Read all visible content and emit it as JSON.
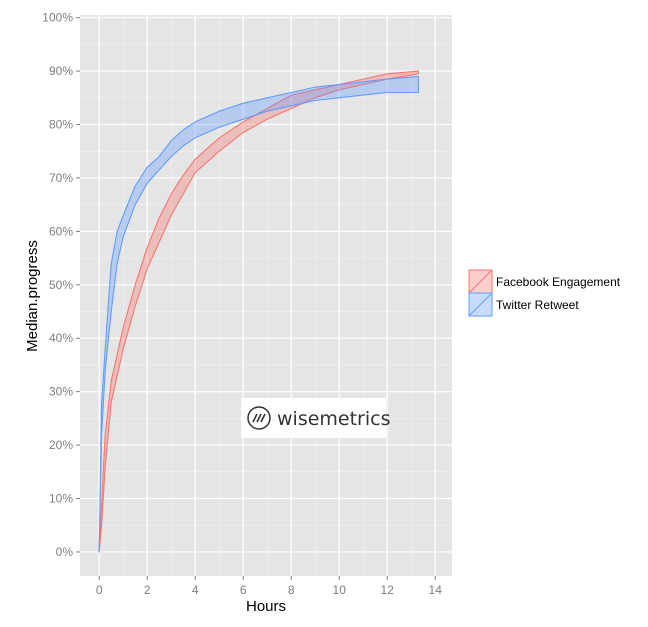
{
  "chart_data": {
    "type": "area",
    "xlabel": "Hours",
    "ylabel": "Median.progress",
    "xlim": [
      -0.8,
      14.7
    ],
    "ylim": [
      -4.5,
      100.5
    ],
    "x_ticks": [
      0,
      2,
      4,
      6,
      8,
      10,
      12,
      14
    ],
    "x_tick_labels": [
      "0",
      "2",
      "4",
      "6",
      "8",
      "10",
      "12",
      "14"
    ],
    "y_ticks": [
      0,
      10,
      20,
      30,
      40,
      50,
      60,
      70,
      80,
      90,
      100
    ],
    "y_tick_labels": [
      "0%",
      "10%",
      "20%",
      "30%",
      "40%",
      "50%",
      "60%",
      "70%",
      "80%",
      "90%",
      "100%"
    ],
    "grid": true,
    "legend_position": "right",
    "series": [
      {
        "name": "Facebook Engagement",
        "color": "#F8766D",
        "x": [
          0,
          0.1,
          0.25,
          0.5,
          1,
          1.5,
          2,
          2.5,
          3,
          3.5,
          4,
          5,
          6,
          7,
          8,
          9,
          10,
          11,
          12,
          13.3
        ],
        "lower": [
          0,
          5,
          16,
          28,
          38,
          46,
          53,
          58,
          63,
          67,
          71,
          75,
          78.5,
          81,
          83,
          85,
          86.5,
          87.5,
          88.5,
          89.5
        ],
        "upper": [
          1,
          9,
          22,
          32,
          42,
          50,
          57,
          62.5,
          67,
          70.5,
          73.5,
          77.5,
          80.5,
          83,
          85.5,
          86.5,
          87.5,
          88.5,
          89.5,
          90
        ]
      },
      {
        "name": "Twitter Retweet",
        "color": "#619CFF",
        "x": [
          0,
          0.1,
          0.25,
          0.5,
          0.75,
          1,
          1.5,
          2,
          2.5,
          3,
          3.5,
          4,
          5,
          6,
          7,
          8,
          9,
          10,
          11,
          12,
          13.3
        ],
        "lower": [
          0,
          22,
          34,
          45,
          54,
          59,
          65,
          69,
          71.5,
          74,
          76,
          77.5,
          79.5,
          81,
          82.5,
          83.5,
          84.5,
          85,
          85.5,
          86,
          86
        ],
        "upper": [
          0,
          28,
          38,
          54,
          60,
          63,
          68.5,
          72,
          74,
          77,
          79,
          80.5,
          82.5,
          84,
          85,
          86,
          87,
          87.5,
          88,
          88.5,
          89
        ]
      }
    ],
    "watermark": "wisemetrics"
  }
}
